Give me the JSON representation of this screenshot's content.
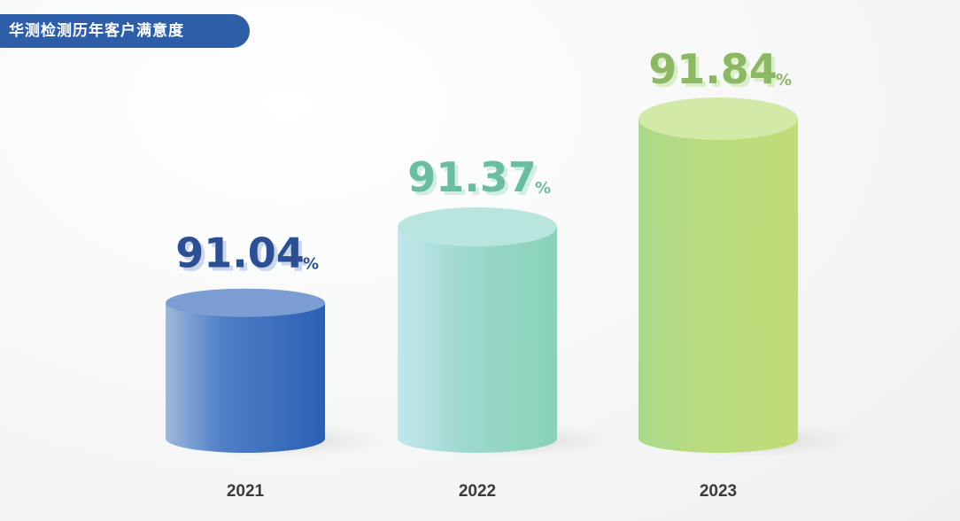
{
  "title": "华测检测历年客户满意度",
  "colors": {
    "title_bg": "#2e5ea8",
    "c2021": "#2b61b5",
    "c2022": "#91d7c4",
    "c2023": "#b5d97a",
    "label2021": "#2c4f94",
    "label2022": "#6cbc9f",
    "label2023": "#8cb865"
  },
  "chart_data": {
    "type": "bar",
    "title": "华测检测历年客户满意度",
    "categories": [
      "2021",
      "2022",
      "2023"
    ],
    "values": [
      91.04,
      91.37,
      91.84
    ],
    "value_labels": [
      "91.04",
      "91.37",
      "91.84"
    ],
    "unit": "%",
    "xlabel": "",
    "ylabel": "",
    "grid": false,
    "legend": "none"
  }
}
